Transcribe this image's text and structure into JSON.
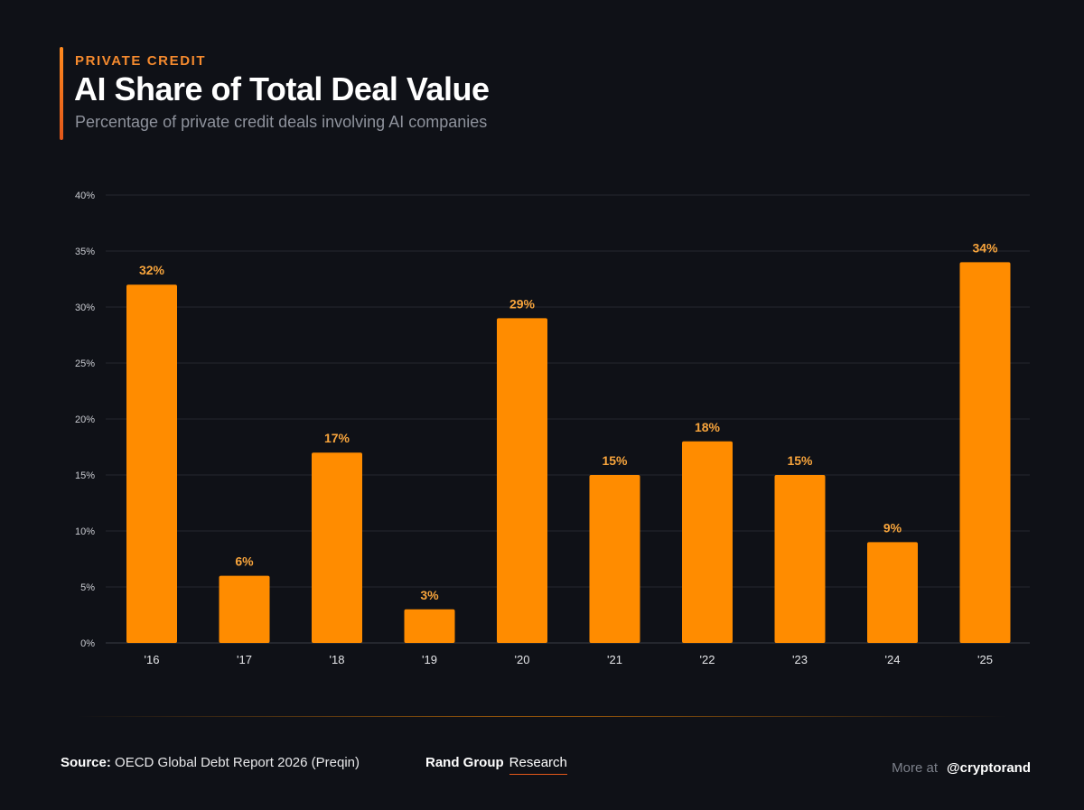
{
  "header": {
    "kicker": "PRIVATE CREDIT",
    "title": "AI Share of Total Deal Value",
    "subtitle": "Percentage of private credit deals involving AI companies"
  },
  "colors": {
    "background": "#0f1117",
    "bar": "#ff8c00",
    "label": "#f7a43c",
    "accent": "#f58a2e"
  },
  "chart_data": {
    "type": "bar",
    "title": "AI Share of Total Deal Value",
    "xlabel": "",
    "ylabel": "",
    "ylim": [
      0,
      40
    ],
    "yticks": [
      0,
      5,
      10,
      15,
      20,
      25,
      30,
      35,
      40
    ],
    "ytick_labels": [
      "0%",
      "5%",
      "10%",
      "15%",
      "20%",
      "25%",
      "30%",
      "35%",
      "40%"
    ],
    "categories": [
      "'16",
      "'17",
      "'18",
      "'19",
      "'20",
      "'21",
      "'22",
      "'23",
      "'24",
      "'25"
    ],
    "values": [
      32,
      6,
      17,
      3,
      29,
      15,
      18,
      15,
      9,
      34
    ],
    "value_labels": [
      "32%",
      "6%",
      "17%",
      "3%",
      "29%",
      "15%",
      "18%",
      "15%",
      "9%",
      "34%"
    ],
    "grid": true
  },
  "footer": {
    "source_label": "Source:",
    "source_text": "OECD Global Debt Report 2026 (Preqin)",
    "brand_name": "Rand Group",
    "brand_tag": "Research",
    "more_label": "More at",
    "handle": "@cryptorand"
  }
}
